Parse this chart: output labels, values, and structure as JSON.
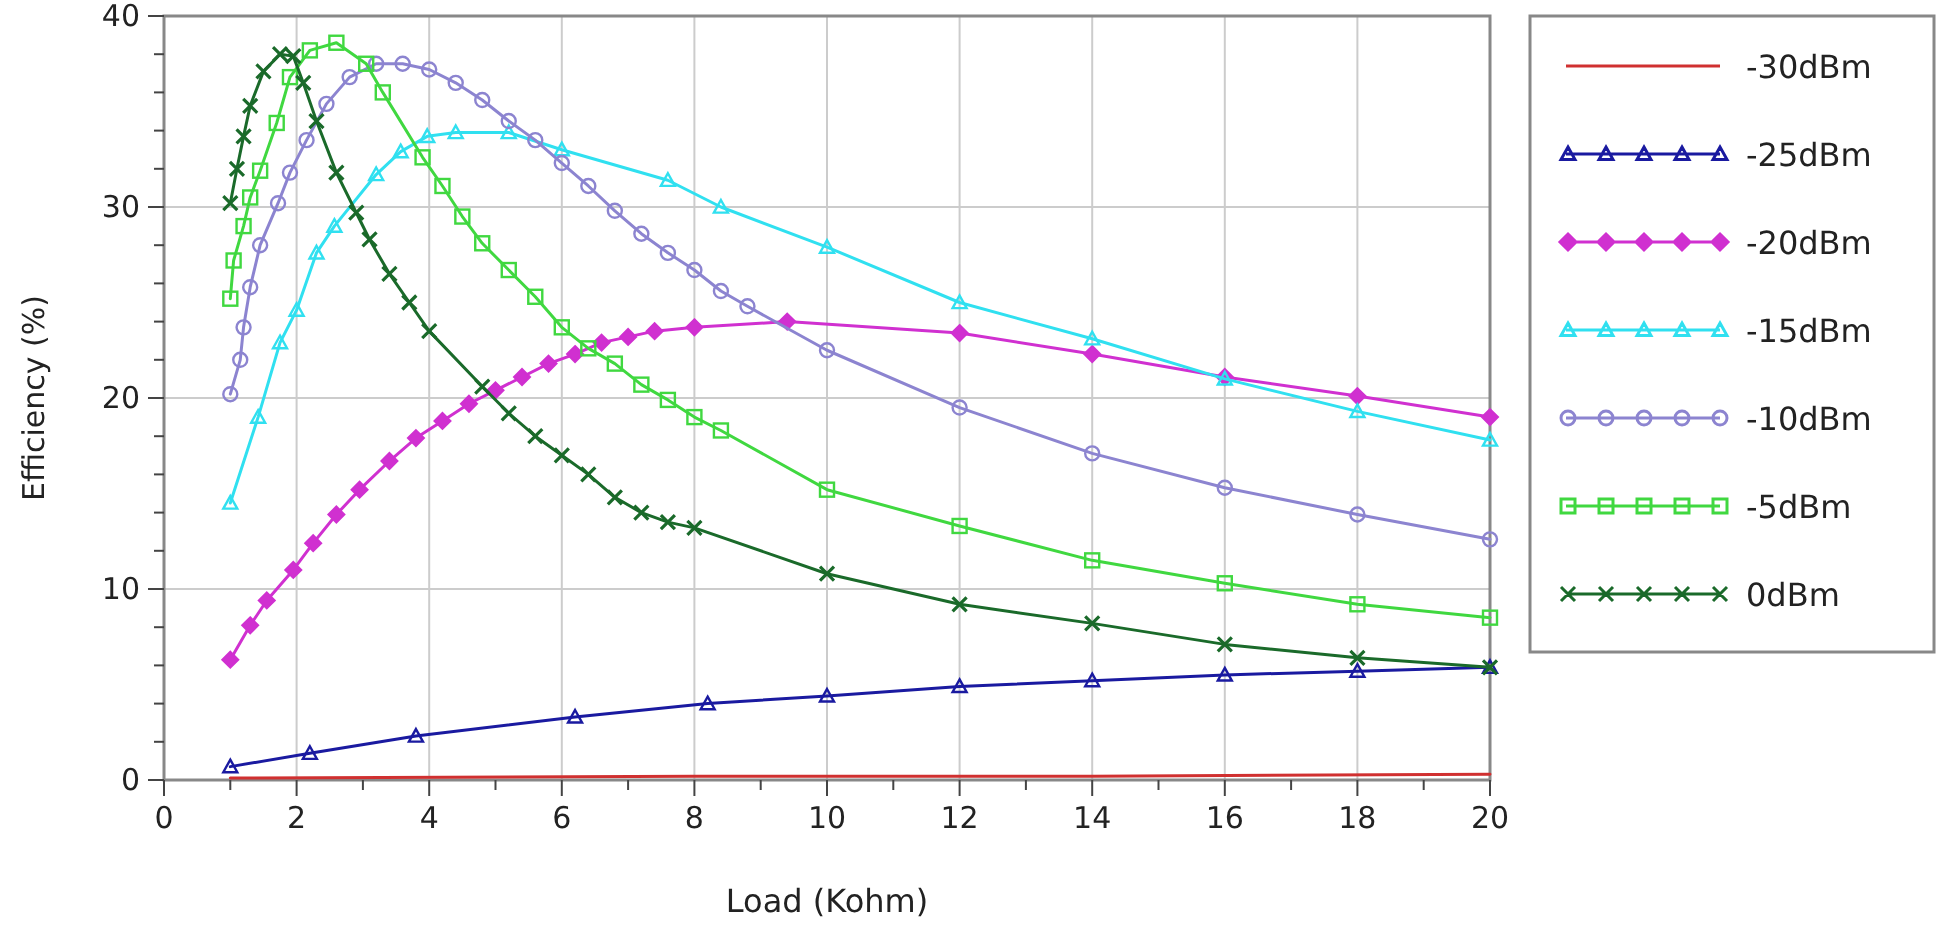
{
  "chart_data": {
    "type": "line",
    "xlabel": "Load (Kohm)",
    "ylabel": "Efficiency (%)",
    "xlim": [
      0,
      20
    ],
    "ylim": [
      0,
      40
    ],
    "xticks": [
      0,
      {
        "value": 1,
        "label": null
      },
      2,
      {
        "value": 3,
        "label": null
      },
      4,
      {
        "value": 5,
        "label": null
      },
      6,
      {
        "value": 7,
        "label": null
      },
      8,
      {
        "value": 9,
        "label": null
      },
      10,
      {
        "value": 11,
        "label": null
      },
      12,
      {
        "value": 13,
        "label": null
      },
      14,
      {
        "value": 15,
        "label": null
      },
      16,
      {
        "value": 17,
        "label": null
      },
      18,
      {
        "value": 19,
        "label": null
      },
      20
    ],
    "yticks": [
      0,
      {
        "value": 2,
        "label": null
      },
      {
        "value": 4,
        "label": null
      },
      {
        "value": 6,
        "label": null
      },
      {
        "value": 8,
        "label": null
      },
      10,
      {
        "value": 12,
        "label": null
      },
      {
        "value": 14,
        "label": null
      },
      {
        "value": 16,
        "label": null
      },
      {
        "value": 18,
        "label": null
      },
      20,
      {
        "value": 22,
        "label": null
      },
      {
        "value": 24,
        "label": null
      },
      {
        "value": 26,
        "label": null
      },
      {
        "value": 28,
        "label": null
      },
      30,
      {
        "value": 32,
        "label": null
      },
      {
        "value": 34,
        "label": null
      },
      {
        "value": 36,
        "label": null
      },
      {
        "value": 38,
        "label": null
      },
      40
    ],
    "grid": true,
    "legend": "right",
    "series": [
      {
        "name": "-30dBm",
        "color": "#d03030",
        "marker": "none",
        "x": [
          1,
          8,
          14,
          20
        ],
        "values": [
          0.1,
          0.2,
          0.2,
          0.3
        ]
      },
      {
        "name": "-25dBm",
        "color": "#1a1aa0",
        "marker": "triangle",
        "x": [
          1,
          2.2,
          3.8,
          6.2,
          8.2,
          10,
          12,
          14,
          16,
          18,
          20
        ],
        "values": [
          0.7,
          1.4,
          2.3,
          3.3,
          4.0,
          4.4,
          4.9,
          5.2,
          5.5,
          5.7,
          5.9
        ]
      },
      {
        "name": "-20dBm",
        "color": "#d030d0",
        "marker": "diamond",
        "x": [
          1,
          1.3,
          1.55,
          1.95,
          2.25,
          2.6,
          2.95,
          3.4,
          3.8,
          4.2,
          4.6,
          5,
          5.4,
          5.8,
          6.2,
          6.6,
          7,
          7.4,
          8,
          9.4,
          12,
          14,
          16,
          18,
          20
        ],
        "values": [
          6.3,
          8.1,
          9.4,
          11.0,
          12.4,
          13.9,
          15.2,
          16.7,
          17.9,
          18.8,
          19.7,
          20.4,
          21.1,
          21.8,
          22.3,
          22.9,
          23.2,
          23.5,
          23.7,
          24.0,
          23.4,
          22.3,
          21.1,
          20.1,
          19.0
        ]
      },
      {
        "name": "-15dBm",
        "color": "#30e0f0",
        "marker": "triangle",
        "x": [
          1,
          1.42,
          1.75,
          2,
          2.3,
          2.57,
          3.2,
          3.57,
          3.97,
          4.4,
          5.2,
          6,
          7.6,
          8.4,
          10,
          12,
          14,
          16,
          18,
          20
        ],
        "values": [
          14.5,
          19.0,
          22.9,
          24.6,
          27.6,
          29.0,
          31.7,
          32.9,
          33.7,
          33.9,
          33.9,
          33.0,
          31.4,
          30.0,
          27.9,
          25.0,
          23.1,
          21.0,
          19.3,
          17.8
        ]
      },
      {
        "name": "-10dBm",
        "color": "#8c84d0",
        "marker": "circle",
        "x": [
          1,
          1.15,
          1.2,
          1.3,
          1.45,
          1.72,
          1.9,
          2.15,
          2.45,
          2.8,
          3.2,
          3.6,
          4,
          4.4,
          4.8,
          5.2,
          5.6,
          6,
          6.4,
          6.8,
          7.2,
          7.6,
          8,
          8.4,
          8.8,
          10,
          12,
          14,
          16,
          18,
          20
        ],
        "values": [
          20.2,
          22.0,
          23.7,
          25.8,
          28.0,
          30.2,
          31.8,
          33.5,
          35.4,
          36.8,
          37.5,
          37.5,
          37.2,
          36.5,
          35.6,
          34.5,
          33.5,
          32.3,
          31.1,
          29.8,
          28.6,
          27.6,
          26.7,
          25.6,
          24.8,
          22.5,
          19.5,
          17.1,
          15.3,
          13.9,
          12.6
        ]
      },
      {
        "name": "-5dBm",
        "color": "#40d840",
        "marker": "square",
        "x": [
          1,
          1.05,
          1.2,
          1.3,
          1.45,
          1.7,
          1.9,
          2.2,
          2.6,
          3.05,
          3.3,
          3.9,
          4.2,
          4.5,
          4.8,
          5.2,
          5.6,
          6,
          6.4,
          6.8,
          7.2,
          7.6,
          8,
          8.4,
          10,
          12,
          14,
          16,
          18,
          20
        ],
        "values": [
          25.2,
          27.2,
          29.0,
          30.5,
          31.9,
          34.4,
          36.8,
          38.2,
          38.6,
          37.5,
          36.0,
          32.6,
          31.1,
          29.5,
          28.1,
          26.7,
          25.3,
          23.7,
          22.6,
          21.8,
          20.7,
          19.9,
          19.0,
          18.3,
          15.2,
          13.3,
          11.5,
          10.3,
          9.2,
          8.5
        ]
      },
      {
        "name": "0dBm",
        "color": "#1a6a2a",
        "marker": "cross",
        "x": [
          1,
          1.1,
          1.2,
          1.3,
          1.5,
          1.75,
          1.95,
          2.1,
          2.3,
          2.6,
          2.9,
          3.1,
          3.4,
          3.7,
          4,
          4.8,
          5.2,
          5.6,
          6,
          6.4,
          6.8,
          7.2,
          7.6,
          8,
          10,
          12,
          14,
          16,
          18,
          20
        ],
        "values": [
          30.2,
          32.0,
          33.7,
          35.3,
          37.1,
          38.0,
          37.9,
          36.5,
          34.5,
          31.8,
          29.7,
          28.3,
          26.5,
          25.0,
          23.5,
          20.6,
          19.2,
          18.0,
          17.0,
          16.0,
          14.8,
          14.0,
          13.5,
          13.2,
          10.8,
          9.2,
          8.2,
          7.1,
          6.4,
          5.9
        ]
      }
    ]
  }
}
